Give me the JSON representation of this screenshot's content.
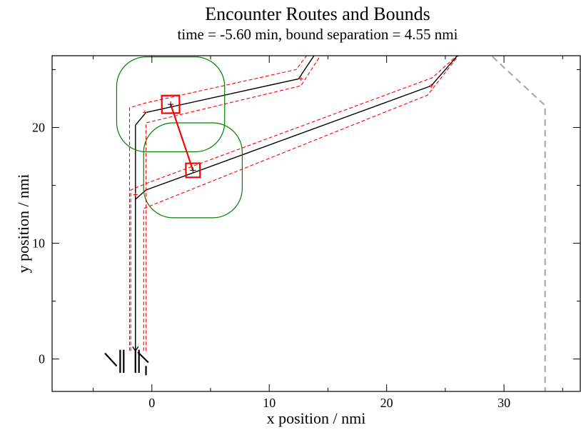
{
  "chart_data": {
    "type": "line",
    "title": "Encounter Routes and Bounds",
    "subtitle": "time = -5.60 min, bound separation = 4.55 nmi",
    "xlabel": "x position / nmi",
    "ylabel": "y position / nmi",
    "xlim": [
      -8.5,
      36.5
    ],
    "ylim": [
      -2.8,
      26.2
    ],
    "xticks": [
      0,
      10,
      20,
      30
    ],
    "yticks": [
      0,
      10,
      20
    ],
    "grid": false,
    "colors": {
      "route": "#000000",
      "bound": "#ff0000",
      "separation": "#ff0000",
      "protected_zone": "#008000",
      "boundary": "#aaaaaa"
    },
    "series": [
      {
        "role": "route",
        "color": "#000000",
        "style": "solid",
        "points": [
          [
            -1.4,
            0.7
          ],
          [
            -1.4,
            13.8
          ],
          [
            -0.5,
            14.6
          ],
          [
            23.8,
            23.6
          ],
          [
            28.0,
            28.5
          ]
        ]
      },
      {
        "role": "route",
        "color": "#000000",
        "style": "solid",
        "points": [
          [
            -1.4,
            0.7
          ],
          [
            -1.4,
            20.2
          ],
          [
            -0.5,
            21.3
          ],
          [
            12.5,
            24.2
          ],
          [
            15.0,
            28.0
          ]
        ]
      },
      {
        "role": "bound",
        "color": "#ff0000",
        "style": "dashed",
        "points": [
          [
            -0.7,
            0.7
          ],
          [
            -0.7,
            13.0
          ],
          [
            23.5,
            22.8
          ],
          [
            27.5,
            28.0
          ]
        ]
      },
      {
        "role": "bound",
        "color": "#ff0000",
        "style": "dashed",
        "points": [
          [
            -1.8,
            0.7
          ],
          [
            -1.8,
            14.6
          ],
          [
            -0.4,
            15.2
          ],
          [
            23.9,
            24.3
          ],
          [
            28.5,
            28.5
          ]
        ]
      },
      {
        "role": "bound",
        "color": "#ff0000",
        "style": "dashed",
        "points": [
          [
            -0.5,
            0.7
          ],
          [
            -0.5,
            20.4
          ],
          [
            12.7,
            23.6
          ],
          [
            15.5,
            28.0
          ]
        ]
      },
      {
        "role": "bound",
        "color": "#ff0000",
        "style": "dashed",
        "points": [
          [
            -1.9,
            0.7
          ],
          [
            -1.9,
            21.7
          ],
          [
            -0.6,
            22.1
          ],
          [
            12.3,
            25.0
          ],
          [
            14.5,
            28.0
          ]
        ]
      },
      {
        "role": "boundary",
        "color": "#aaaaaa",
        "style": "dashed",
        "points": [
          [
            27.0,
            28.0
          ],
          [
            33.5,
            21.9
          ],
          [
            33.5,
            -2.8
          ]
        ]
      }
    ],
    "aircraft": [
      {
        "x": 1.6,
        "y": 22.0,
        "box": 0.75,
        "zone_halfwidth": 4.6,
        "zone_halfheight": 4.1
      },
      {
        "x": 3.5,
        "y": 16.3,
        "box": 0.6,
        "zone_halfwidth": 4.2,
        "zone_halfheight": 4.1
      }
    ],
    "separation_line": [
      [
        1.6,
        22.0
      ],
      [
        3.5,
        16.3
      ]
    ],
    "route_markers": [
      [
        -0.6,
        21.3
      ],
      [
        12.7,
        24.2
      ],
      [
        23.8,
        23.6
      ],
      [
        -1.4,
        14.2
      ]
    ],
    "runway_marks": [
      [
        [
          -4.0,
          0.5
        ],
        [
          -3.0,
          -0.6
        ]
      ],
      [
        [
          -2.7,
          0.8
        ],
        [
          -2.7,
          -1.2
        ]
      ],
      [
        [
          -2.4,
          0.8
        ],
        [
          -2.4,
          -1.2
        ]
      ],
      [
        [
          -1.4,
          0.8
        ],
        [
          -1.4,
          -1.2
        ]
      ],
      [
        [
          -1.1,
          0.8
        ],
        [
          -1.1,
          -1.2
        ]
      ],
      [
        [
          -1.2,
          0.6
        ],
        [
          -0.3,
          -0.3
        ]
      ],
      [
        [
          -0.5,
          -0.6
        ],
        [
          -0.5,
          -1.4
        ]
      ]
    ]
  }
}
